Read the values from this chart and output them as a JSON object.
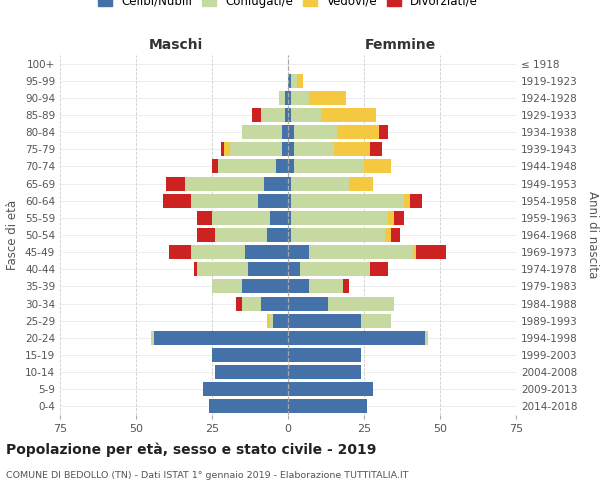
{
  "age_groups": [
    "0-4",
    "5-9",
    "10-14",
    "15-19",
    "20-24",
    "25-29",
    "30-34",
    "35-39",
    "40-44",
    "45-49",
    "50-54",
    "55-59",
    "60-64",
    "65-69",
    "70-74",
    "75-79",
    "80-84",
    "85-89",
    "90-94",
    "95-99",
    "100+"
  ],
  "birth_years": [
    "2014-2018",
    "2009-2013",
    "2004-2008",
    "1999-2003",
    "1994-1998",
    "1989-1993",
    "1984-1988",
    "1979-1983",
    "1974-1978",
    "1969-1973",
    "1964-1968",
    "1959-1963",
    "1954-1958",
    "1949-1953",
    "1944-1948",
    "1939-1943",
    "1934-1938",
    "1929-1933",
    "1924-1928",
    "1919-1923",
    "≤ 1918"
  ],
  "maschi": {
    "celibi": [
      26,
      28,
      24,
      25,
      44,
      5,
      9,
      15,
      13,
      14,
      7,
      6,
      10,
      8,
      4,
      2,
      2,
      1,
      1,
      0,
      0
    ],
    "coniugati": [
      0,
      0,
      0,
      0,
      1,
      1,
      6,
      10,
      17,
      18,
      17,
      19,
      22,
      26,
      19,
      17,
      13,
      8,
      2,
      0,
      0
    ],
    "vedovi": [
      0,
      0,
      0,
      0,
      0,
      1,
      0,
      0,
      0,
      0,
      0,
      0,
      0,
      0,
      0,
      2,
      0,
      0,
      0,
      0,
      0
    ],
    "divorziati": [
      0,
      0,
      0,
      0,
      0,
      0,
      2,
      0,
      1,
      7,
      6,
      5,
      9,
      6,
      2,
      1,
      0,
      3,
      0,
      0,
      0
    ]
  },
  "femmine": {
    "nubili": [
      26,
      28,
      24,
      24,
      45,
      24,
      13,
      7,
      4,
      7,
      1,
      1,
      1,
      1,
      2,
      2,
      2,
      1,
      1,
      1,
      0
    ],
    "coniugate": [
      0,
      0,
      0,
      0,
      1,
      10,
      22,
      11,
      23,
      34,
      31,
      32,
      37,
      19,
      23,
      13,
      14,
      10,
      6,
      2,
      0
    ],
    "vedove": [
      0,
      0,
      0,
      0,
      0,
      0,
      0,
      0,
      0,
      1,
      2,
      2,
      2,
      8,
      9,
      12,
      14,
      18,
      12,
      2,
      0
    ],
    "divorziate": [
      0,
      0,
      0,
      0,
      0,
      0,
      0,
      2,
      6,
      10,
      3,
      3,
      4,
      0,
      0,
      4,
      3,
      0,
      0,
      0,
      0
    ]
  },
  "colors": {
    "celibi": "#4472a8",
    "coniugati": "#c5d9a0",
    "vedovi": "#f5c842",
    "divorziati": "#cc2222"
  },
  "xlim": 75,
  "title": "Popolazione per età, sesso e stato civile - 2019",
  "subtitle": "COMUNE DI BEDOLLO (TN) - Dati ISTAT 1° gennaio 2019 - Elaborazione TUTTITALIA.IT",
  "legend_labels": [
    "Celibi/Nubili",
    "Coniugati/e",
    "Vedovi/e",
    "Divorziati/e"
  ],
  "ylabel_left": "Fasce di età",
  "ylabel_right": "Anni di nascita",
  "header_maschi": "Maschi",
  "header_femmine": "Femmine"
}
